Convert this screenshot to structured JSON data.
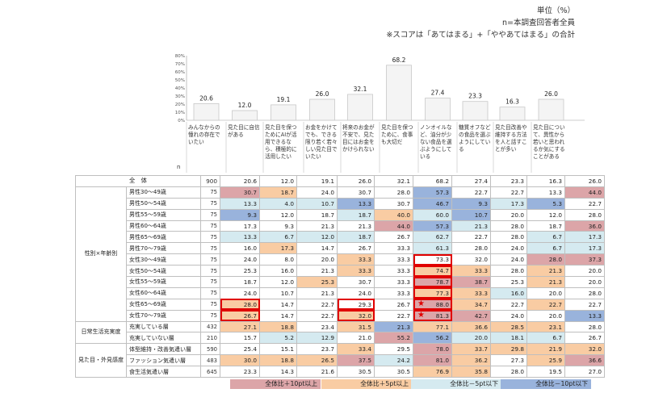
{
  "notes": {
    "unit": "単位（%）",
    "base": "n=本調査回答者全員",
    "score": "※スコアは「あてはまる」+「ややあてはまる」の合計"
  },
  "chart_data": {
    "type": "bar",
    "categories": [
      "みんなからの憧れの存在でいたい",
      "見た目に自信がある",
      "見た目を保つためにAIが活用できるなら、積極的に活用したい",
      "お金をかけてでも、できる限り若く若々しい見た目でいたい",
      "将来のお金が不安で、見た目にはお金をかけられない",
      "見た目を保つために、食事も大切だ",
      "ノンオイルなど、油分が少ない食品を選ぶようにしている",
      "糖質オフなどの食品を選ぶようにしている",
      "見た目改善や維持する方法を人と話すことが多い",
      "見た目について、異性から若いと思われるか気にすることがある"
    ],
    "values": [
      20.6,
      12.0,
      19.1,
      26.0,
      32.1,
      68.2,
      27.4,
      23.3,
      16.3,
      26.0
    ],
    "ylim": [
      0,
      80
    ],
    "yticks": [
      "0%",
      "10%",
      "20%",
      "30%",
      "40%",
      "50%",
      "60%",
      "70%",
      "80%"
    ]
  },
  "table": {
    "n_header": "n",
    "groups": {
      "age": "性別×年齢別",
      "life": "日常生活充実度",
      "look": "見た目・外見感度"
    },
    "rows": [
      {
        "label": "全　体",
        "n": "900",
        "values": [
          "20.6",
          "12.0",
          "19.1",
          "26.0",
          "32.1",
          "68.2",
          "27.4",
          "23.3",
          "16.3",
          "26.0"
        ],
        "colors": [
          "",
          "",
          "",
          "",
          "",
          "",
          "",
          "",
          "",
          ""
        ]
      },
      {
        "label": "男性30～49歳",
        "n": "75",
        "values": [
          "30.7",
          "18.7",
          "24.0",
          "30.7",
          "28.0",
          "57.3",
          "22.7",
          "22.7",
          "13.3",
          "44.0"
        ],
        "colors": [
          "r",
          "o",
          "",
          "",
          "",
          "b",
          "",
          "",
          "",
          "r"
        ]
      },
      {
        "label": "男性50～54歳",
        "n": "75",
        "values": [
          "13.3",
          "4.0",
          "10.7",
          "13.3",
          "30.7",
          "46.7",
          "9.3",
          "17.3",
          "5.3",
          "22.7"
        ],
        "colors": [
          "l",
          "l",
          "l",
          "b",
          "",
          "b",
          "b",
          "l",
          "b",
          ""
        ]
      },
      {
        "label": "男性55～59歳",
        "n": "75",
        "values": [
          "9.3",
          "12.0",
          "18.7",
          "18.7",
          "40.0",
          "60.0",
          "10.7",
          "20.0",
          "12.0",
          "28.0"
        ],
        "colors": [
          "b",
          "",
          "",
          "l",
          "o",
          "l",
          "b",
          "",
          "",
          ""
        ]
      },
      {
        "label": "男性60～64歳",
        "n": "75",
        "values": [
          "17.3",
          "9.3",
          "21.3",
          "21.3",
          "44.0",
          "57.3",
          "21.3",
          "28.0",
          "18.7",
          "36.0"
        ],
        "colors": [
          "",
          "",
          "",
          "",
          "r",
          "b",
          "l",
          "",
          "",
          "r"
        ]
      },
      {
        "label": "男性65～69歳",
        "n": "75",
        "values": [
          "13.3",
          "6.7",
          "12.0",
          "18.7",
          "26.7",
          "62.7",
          "22.7",
          "28.0",
          "6.7",
          "17.3"
        ],
        "colors": [
          "l",
          "l",
          "l",
          "l",
          "",
          "l",
          "",
          "",
          "l",
          "l"
        ]
      },
      {
        "label": "男性70～79歳",
        "n": "75",
        "values": [
          "16.0",
          "17.3",
          "14.7",
          "26.7",
          "33.3",
          "61.3",
          "28.0",
          "24.0",
          "6.7",
          "17.3"
        ],
        "colors": [
          "",
          "o",
          "",
          "",
          "",
          "l",
          "",
          "",
          "l",
          "l"
        ]
      },
      {
        "label": "女性30～49歳",
        "n": "75",
        "values": [
          "24.0",
          "8.0",
          "20.0",
          "33.3",
          "33.3",
          "73.3",
          "32.0",
          "24.0",
          "28.0",
          "37.3"
        ],
        "colors": [
          "",
          "",
          "",
          "o",
          "",
          "",
          "",
          "",
          "r",
          "r"
        ]
      },
      {
        "label": "女性50～54歳",
        "n": "75",
        "values": [
          "25.3",
          "16.0",
          "21.3",
          "33.3",
          "33.3",
          "74.7",
          "33.3",
          "28.0",
          "21.3",
          "20.0"
        ],
        "colors": [
          "",
          "",
          "",
          "o",
          "",
          "o",
          "o",
          "",
          "o",
          ""
        ]
      },
      {
        "label": "女性55～59歳",
        "n": "75",
        "values": [
          "18.7",
          "12.0",
          "25.3",
          "30.7",
          "33.3",
          "78.7",
          "38.7",
          "25.3",
          "21.3",
          "20.0"
        ],
        "colors": [
          "",
          "",
          "o",
          "",
          "",
          "r",
          "r",
          "",
          "o",
          ""
        ]
      },
      {
        "label": "女性60～64歳",
        "n": "75",
        "values": [
          "24.0",
          "10.7",
          "21.3",
          "24.0",
          "33.3",
          "77.3",
          "33.3",
          "16.0",
          "20.0",
          "28.0"
        ],
        "colors": [
          "",
          "",
          "",
          "",
          "",
          "o",
          "o",
          "l",
          "",
          ""
        ]
      },
      {
        "label": "女性65～69歳",
        "n": "75",
        "values": [
          "28.0",
          "14.7",
          "22.7",
          "29.3",
          "26.7",
          "88.0",
          "34.7",
          "22.7",
          "22.7",
          "22.7"
        ],
        "colors": [
          "o",
          "",
          "",
          "",
          "",
          "r",
          "o",
          "",
          "o",
          ""
        ]
      },
      {
        "label": "女性70～79歳",
        "n": "75",
        "values": [
          "26.7",
          "14.7",
          "22.7",
          "32.0",
          "22.7",
          "81.3",
          "42.7",
          "24.0",
          "20.0",
          "13.3"
        ],
        "colors": [
          "o",
          "",
          "",
          "o",
          "",
          "r",
          "r",
          "",
          "",
          "b"
        ]
      },
      {
        "label": "充実している層",
        "n": "432",
        "values": [
          "27.1",
          "18.8",
          "23.4",
          "31.5",
          "21.3",
          "77.1",
          "36.6",
          "28.5",
          "23.1",
          "28.0"
        ],
        "colors": [
          "o",
          "o",
          "",
          "o",
          "b",
          "o",
          "o",
          "o",
          "o",
          ""
        ]
      },
      {
        "label": "充実していない層",
        "n": "210",
        "values": [
          "15.7",
          "5.2",
          "12.9",
          "21.0",
          "55.2",
          "56.2",
          "20.0",
          "18.1",
          "6.7",
          "26.7"
        ],
        "colors": [
          "",
          "l",
          "l",
          "",
          "r",
          "b",
          "l",
          "l",
          "l",
          ""
        ]
      },
      {
        "label": "体型維持・改善気遣い層",
        "n": "590",
        "values": [
          "25.4",
          "15.1",
          "23.7",
          "33.4",
          "29.5",
          "78.0",
          "33.7",
          "29.8",
          "21.9",
          "32.0"
        ],
        "colors": [
          "",
          "",
          "",
          "o",
          "",
          "r",
          "o",
          "o",
          "o",
          "o"
        ]
      },
      {
        "label": "ファッション気遣い層",
        "n": "483",
        "values": [
          "30.0",
          "18.8",
          "26.5",
          "37.5",
          "24.2",
          "81.0",
          "36.2",
          "27.3",
          "25.9",
          "36.6"
        ],
        "colors": [
          "o",
          "o",
          "o",
          "r",
          "l",
          "r",
          "o",
          "",
          "o",
          "r"
        ]
      },
      {
        "label": "食生活気遣い層",
        "n": "645",
        "values": [
          "23.3",
          "14.3",
          "21.6",
          "30.5",
          "30.5",
          "76.9",
          "35.8",
          "28.0",
          "19.5",
          "27.0"
        ],
        "colors": [
          "",
          "",
          "",
          "",
          "",
          "o",
          "o",
          "",
          "",
          ""
        ]
      }
    ]
  },
  "legend": [
    {
      "label": "全体比＋10pt以上",
      "color": "#dca5a8"
    },
    {
      "label": "全体比＋5pt以上",
      "color": "#f9cca3"
    },
    {
      "label": "全体比－5pt以下",
      "color": "#d5eaf0"
    },
    {
      "label": "全体比－10pt以下",
      "color": "#99b3dc"
    }
  ]
}
